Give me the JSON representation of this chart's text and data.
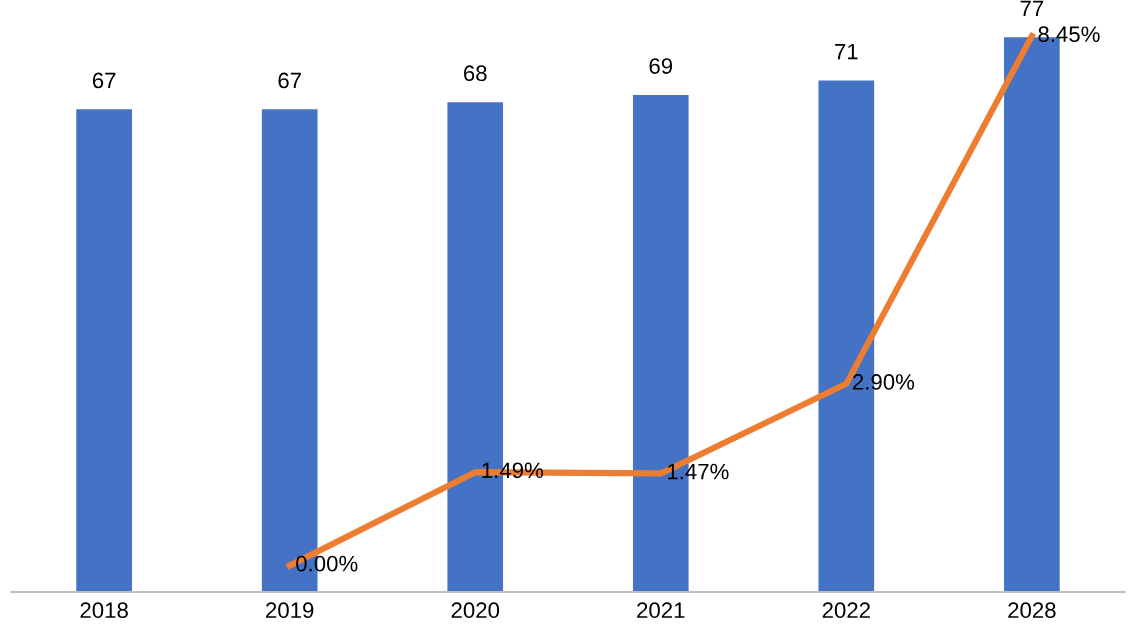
{
  "chart_data": {
    "type": "bar",
    "categories": [
      "2018",
      "2019",
      "2020",
      "2021",
      "2022",
      "2028"
    ],
    "series": [
      {
        "color": "#4472c4",
        "values": [
          67,
          67,
          68,
          69,
          71,
          77
        ],
        "value_labels": [
          "67",
          "67",
          "68",
          "69",
          "71",
          "77"
        ]
      },
      {
        "type": "line",
        "axis": "y2",
        "color": "#ed7d31",
        "values": [
          null,
          0.0,
          1.49,
          1.47,
          2.9,
          8.45
        ],
        "value_labels": [
          null,
          "0.00%",
          "1.49%",
          "1.47%",
          "2.90%",
          "8.45%"
        ]
      }
    ],
    "tick_labels": "x",
    "grid": false,
    "legend": false
  }
}
